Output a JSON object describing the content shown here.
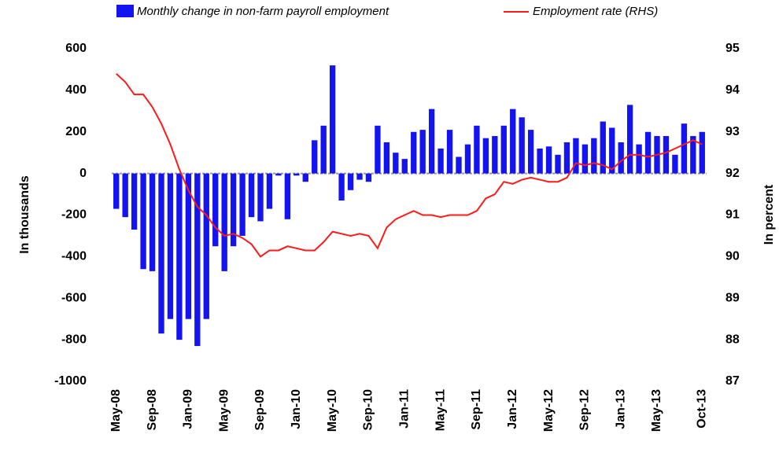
{
  "chart_data": {
    "type": "bar",
    "y_label": "In thousands",
    "y2_label": "In percent",
    "categories": [
      "May-08",
      null,
      null,
      null,
      "Sep-08",
      null,
      null,
      null,
      "Jan-09",
      null,
      null,
      null,
      "May-09",
      null,
      null,
      null,
      "Sep-09",
      null,
      null,
      null,
      "Jan-10",
      null,
      null,
      null,
      "May-10",
      null,
      null,
      null,
      "Sep-10",
      null,
      null,
      null,
      "Jan-11",
      null,
      null,
      null,
      "May-11",
      null,
      null,
      null,
      "Sep-11",
      null,
      null,
      null,
      "Jan-12",
      null,
      null,
      null,
      "May-12",
      null,
      null,
      null,
      "Sep-12",
      null,
      null,
      null,
      "Jan-13",
      null,
      null,
      null,
      "May-13",
      null,
      null,
      null,
      null,
      "Oct-13"
    ],
    "series": [
      {
        "name": "Monthly change in non-farm payroll employment",
        "type": "bar",
        "color": "#1414f0",
        "values": [
          -170,
          -210,
          -270,
          -460,
          -470,
          -770,
          -700,
          -800,
          -700,
          -830,
          -700,
          -350,
          -470,
          -350,
          -300,
          -210,
          -230,
          -170,
          -10,
          -220,
          -10,
          -40,
          160,
          230,
          520,
          -130,
          -80,
          -30,
          -40,
          230,
          150,
          100,
          70,
          200,
          210,
          310,
          120,
          210,
          80,
          140,
          230,
          170,
          180,
          230,
          310,
          270,
          210,
          120,
          130,
          90,
          150,
          170,
          140,
          170,
          250,
          220,
          150,
          330,
          140,
          200,
          180,
          180,
          90,
          240,
          180,
          200
        ]
      },
      {
        "name": "Employment rate (RHS)",
        "type": "line",
        "axis": "y2",
        "color": "#ff1a1a",
        "values": [
          94.4,
          94.2,
          93.9,
          93.9,
          93.6,
          93.2,
          92.7,
          92.1,
          91.6,
          91.2,
          91.0,
          90.7,
          90.5,
          90.55,
          90.45,
          90.3,
          90.0,
          90.15,
          90.15,
          90.25,
          90.2,
          90.15,
          90.15,
          90.35,
          90.6,
          90.55,
          90.5,
          90.55,
          90.5,
          90.2,
          90.7,
          90.9,
          91.0,
          91.1,
          91.0,
          91.0,
          90.95,
          91.0,
          91.0,
          91.0,
          91.1,
          91.4,
          91.5,
          91.8,
          91.75,
          91.85,
          91.9,
          91.85,
          91.8,
          91.8,
          91.9,
          92.25,
          92.2,
          92.25,
          92.2,
          92.1,
          92.3,
          92.45,
          92.45,
          92.4,
          92.45,
          92.5,
          92.6,
          92.7,
          92.8,
          92.7
        ]
      }
    ],
    "ylim": [
      -1000,
      600
    ],
    "yticks": [
      -1000,
      -800,
      -600,
      -400,
      -200,
      0,
      200,
      400,
      600
    ],
    "y2lim": [
      87,
      95
    ],
    "y2ticks": [
      87,
      88,
      89,
      90,
      91,
      92,
      93,
      94,
      95
    ]
  }
}
